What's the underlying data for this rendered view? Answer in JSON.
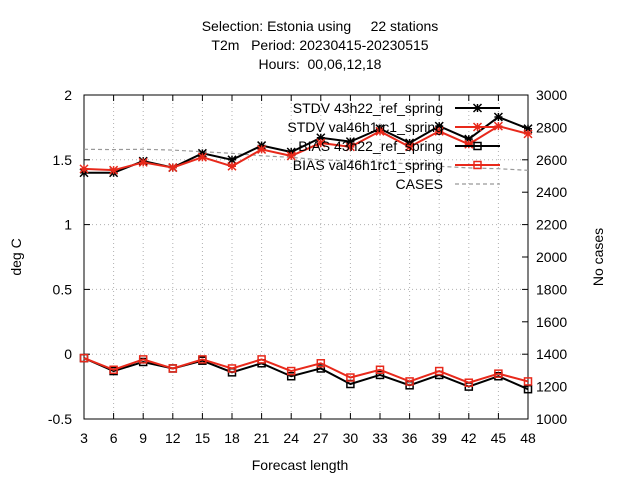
{
  "title": {
    "line1": "Selection: Estonia using     22 stations",
    "line2": "T2m   Period: 20230415-20230515",
    "line3": "Hours:  00,06,12,18"
  },
  "chart_data": {
    "type": "line",
    "xlabel": "Forecast length",
    "ylabel": "deg C",
    "y2label": "No cases",
    "x": [
      3,
      6,
      9,
      12,
      15,
      18,
      21,
      24,
      27,
      30,
      33,
      36,
      39,
      42,
      45,
      48
    ],
    "xticks": [
      "3",
      "6",
      "9",
      "12",
      "15",
      "18",
      "21",
      "24",
      "27",
      "30",
      "33",
      "36",
      "39",
      "42",
      "45",
      "48"
    ],
    "ylim": [
      -0.5,
      2
    ],
    "yticks": [
      "-0.5",
      "0",
      "0.5",
      "1",
      "1.5",
      "2"
    ],
    "y2lim": [
      1000,
      3000
    ],
    "y2ticks": [
      "1000",
      "1200",
      "1400",
      "1600",
      "1800",
      "2000",
      "2200",
      "2400",
      "2600",
      "2800",
      "3000"
    ],
    "grid": true,
    "legend_position": "top-right",
    "series": [
      {
        "name": "STDV 43h22_ref_spring",
        "axis": "y",
        "color": "#000000",
        "marker": "star",
        "values": [
          1.4,
          1.4,
          1.49,
          1.44,
          1.55,
          1.5,
          1.61,
          1.56,
          1.67,
          1.64,
          1.74,
          1.63,
          1.76,
          1.66,
          1.83,
          1.74
        ]
      },
      {
        "name": "STDV val46h1rc1_spring",
        "axis": "y",
        "color": "#e8291b",
        "marker": "star",
        "values": [
          1.43,
          1.42,
          1.48,
          1.44,
          1.52,
          1.45,
          1.58,
          1.53,
          1.63,
          1.6,
          1.72,
          1.6,
          1.72,
          1.62,
          1.76,
          1.7
        ]
      },
      {
        "name": "BIAS 43h22_ref_spring",
        "axis": "y",
        "color": "#000000",
        "marker": "square",
        "values": [
          -0.03,
          -0.13,
          -0.06,
          -0.11,
          -0.05,
          -0.14,
          -0.07,
          -0.17,
          -0.11,
          -0.23,
          -0.16,
          -0.24,
          -0.16,
          -0.25,
          -0.17,
          -0.27
        ]
      },
      {
        "name": "BIAS val46h1rc1_spring",
        "axis": "y",
        "color": "#e8291b",
        "marker": "square",
        "values": [
          -0.03,
          -0.12,
          -0.04,
          -0.11,
          -0.04,
          -0.11,
          -0.04,
          -0.13,
          -0.07,
          -0.18,
          -0.12,
          -0.21,
          -0.13,
          -0.22,
          -0.15,
          -0.21
        ]
      },
      {
        "name": "CASES",
        "axis": "y2",
        "color": "#999999",
        "marker": "none",
        "dashed": true,
        "values": [
          2665,
          2663,
          2665,
          2660,
          2650,
          2640,
          2625,
          2615,
          2600,
          2592,
          2585,
          2575,
          2560,
          2550,
          2545,
          2535
        ]
      }
    ]
  }
}
